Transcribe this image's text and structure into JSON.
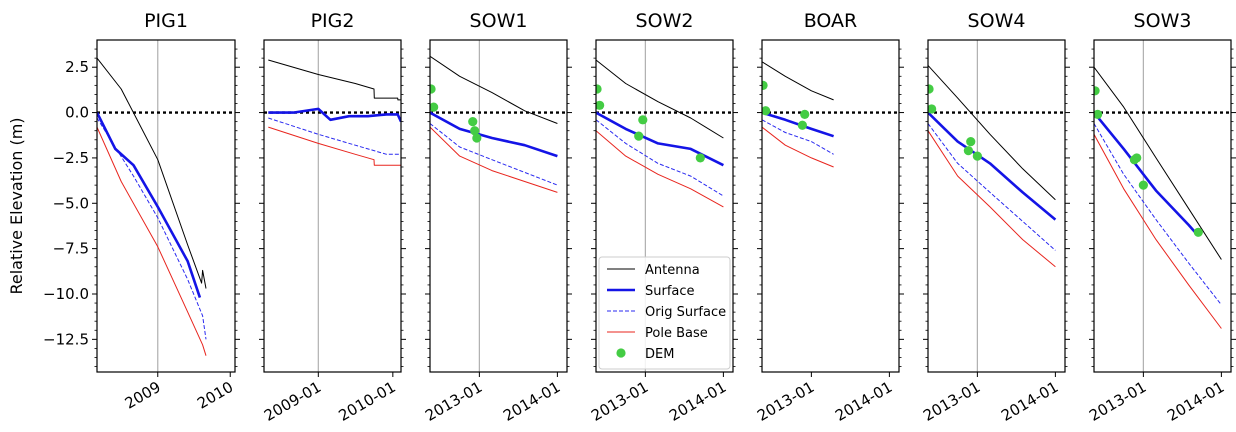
{
  "figure": {
    "ylabel": "Relative Elevation (m)",
    "ylim": [
      -14.3,
      4.0
    ],
    "yticks": [
      2.5,
      0.0,
      -2.5,
      -5.0,
      -7.5,
      -10.0,
      -12.5
    ],
    "ytick_labels": [
      "2.5",
      "0.0",
      "−2.5",
      "−5.0",
      "−7.5",
      "−10.0",
      "−12.5"
    ],
    "colors": {
      "antenna": "#000000",
      "surface": "#1414e6",
      "orig_surface": "#2a2af0",
      "pole_base": "#e8251e",
      "dem": "#44cc44",
      "zero_line": "#000000"
    },
    "legend": {
      "panel": "SOW2",
      "placement": "lower-center",
      "entries": [
        {
          "key": "antenna",
          "label": "Antenna"
        },
        {
          "key": "surface",
          "label": "Surface"
        },
        {
          "key": "orig_surface",
          "label": "Orig Surface"
        },
        {
          "key": "pole_base",
          "label": "Pole Base"
        },
        {
          "key": "dem",
          "label": "DEM"
        }
      ]
    }
  },
  "chart_data": [
    {
      "type": "line",
      "title": "PIG1",
      "xlim": [
        "2008-03-01",
        "2010-01-25"
      ],
      "xticks": [
        {
          "x": "2009-01-01",
          "label": "2009"
        },
        {
          "x": "2010-01-01",
          "label": "2010"
        }
      ],
      "vline": "2009-01-01",
      "series": {
        "antenna": {
          "x": [
            "2008-03-01",
            "2008-07-01",
            "2009-01-01",
            "2009-06-01",
            "2009-08-10",
            "2009-08-15",
            "2009-09-01"
          ],
          "y": [
            3.0,
            1.3,
            -2.6,
            -7.3,
            -9.4,
            -8.7,
            -9.7
          ]
        },
        "surface": {
          "x": [
            "2008-03-01",
            "2008-06-01",
            "2008-09-01",
            "2009-01-01",
            "2009-06-01",
            "2009-08-01"
          ],
          "y": [
            0.0,
            -2.0,
            -2.9,
            -5.2,
            -8.2,
            -10.2
          ]
        },
        "orig_surface": {
          "x": [
            "2008-03-01",
            "2008-09-01",
            "2009-01-01",
            "2009-06-01",
            "2009-08-15",
            "2009-09-01"
          ],
          "y": [
            -0.3,
            -3.5,
            -5.8,
            -9.2,
            -11.2,
            -12.5
          ]
        },
        "pole_base": {
          "x": [
            "2008-03-01",
            "2008-07-01",
            "2009-01-01",
            "2009-06-01",
            "2009-08-15",
            "2009-09-01"
          ],
          "y": [
            -0.8,
            -3.8,
            -7.4,
            -11.0,
            -12.8,
            -13.4
          ]
        }
      },
      "dem": {
        "x": [],
        "y": []
      }
    },
    {
      "type": "line",
      "title": "PIG2",
      "xlim": [
        "2008-04-10",
        "2010-02-10"
      ],
      "xticks": [
        {
          "x": "2009-01-01",
          "label": "2009-01"
        },
        {
          "x": "2010-01-01",
          "label": "2010-01"
        }
      ],
      "vline": "2009-01-01",
      "series": {
        "antenna": {
          "x": [
            "2008-05-01",
            "2009-01-01",
            "2009-07-01",
            "2009-10-01",
            "2009-10-02",
            "2010-01-25",
            "2010-01-26",
            "2010-02-10"
          ],
          "y": [
            2.9,
            2.1,
            1.6,
            1.3,
            0.8,
            0.8,
            0.7,
            0.7
          ]
        },
        "surface": {
          "x": [
            "2008-05-01",
            "2008-09-01",
            "2009-01-01",
            "2009-03-01",
            "2009-06-01",
            "2009-09-01",
            "2009-12-01",
            "2010-01-25",
            "2010-02-10"
          ],
          "y": [
            0.0,
            0.0,
            0.2,
            -0.4,
            -0.2,
            -0.2,
            -0.1,
            -0.1,
            -0.5
          ]
        },
        "orig_surface": {
          "x": [
            "2008-05-01",
            "2009-01-01",
            "2009-07-01",
            "2009-12-01",
            "2010-02-10"
          ],
          "y": [
            -0.3,
            -1.2,
            -1.8,
            -2.3,
            -2.3
          ]
        },
        "pole_base": {
          "x": [
            "2008-05-01",
            "2009-01-01",
            "2009-07-01",
            "2009-10-01",
            "2009-10-02",
            "2010-02-10"
          ],
          "y": [
            -0.8,
            -1.7,
            -2.3,
            -2.6,
            -2.9,
            -2.9
          ]
        }
      },
      "dem": {
        "x": [],
        "y": []
      }
    },
    {
      "type": "line",
      "title": "SOW1",
      "xlim": [
        "2012-05-15",
        "2014-02-15"
      ],
      "xticks": [
        {
          "x": "2013-01-01",
          "label": "2013-01"
        },
        {
          "x": "2014-01-01",
          "label": "2014-01"
        }
      ],
      "vline": "2013-01-01",
      "series": {
        "antenna": {
          "x": [
            "2012-05-15",
            "2012-10-01",
            "2013-03-01",
            "2013-08-01",
            "2014-01-01"
          ],
          "y": [
            3.1,
            2.0,
            1.1,
            0.1,
            -0.6
          ]
        },
        "surface": {
          "x": [
            "2012-05-15",
            "2012-10-01",
            "2013-03-01",
            "2013-08-01",
            "2014-01-01"
          ],
          "y": [
            0.0,
            -0.9,
            -1.4,
            -1.8,
            -2.4
          ]
        },
        "orig_surface": {
          "x": [
            "2012-05-15",
            "2012-10-01",
            "2013-03-01",
            "2013-08-01",
            "2014-01-01"
          ],
          "y": [
            -0.6,
            -1.9,
            -2.6,
            -3.3,
            -4.0
          ]
        },
        "pole_base": {
          "x": [
            "2012-05-15",
            "2012-10-01",
            "2013-03-01",
            "2013-08-01",
            "2014-01-01"
          ],
          "y": [
            -0.8,
            -2.4,
            -3.2,
            -3.8,
            -4.4
          ]
        }
      },
      "dem": {
        "x": [
          "2012-05-20",
          "2012-06-01",
          "2012-12-01",
          "2012-12-10",
          "2012-12-20"
        ],
        "y": [
          1.3,
          0.3,
          -0.5,
          -1.0,
          -1.4
        ]
      }
    },
    {
      "type": "line",
      "title": "SOW2",
      "xlim": [
        "2012-05-15",
        "2014-02-15"
      ],
      "xticks": [
        {
          "x": "2013-01-01",
          "label": "2013-01"
        },
        {
          "x": "2014-01-01",
          "label": "2014-01"
        }
      ],
      "vline": "2013-01-01",
      "series": {
        "antenna": {
          "x": [
            "2012-05-15",
            "2012-10-01",
            "2013-03-01",
            "2013-08-01",
            "2014-01-01"
          ],
          "y": [
            2.9,
            1.6,
            0.6,
            -0.3,
            -1.4
          ]
        },
        "surface": {
          "x": [
            "2012-05-15",
            "2012-10-01",
            "2013-03-01",
            "2013-08-01",
            "2014-01-01"
          ],
          "y": [
            0.0,
            -0.9,
            -1.7,
            -2.0,
            -2.9
          ]
        },
        "orig_surface": {
          "x": [
            "2012-05-15",
            "2012-10-01",
            "2013-03-01",
            "2013-08-01",
            "2014-01-01"
          ],
          "y": [
            -0.4,
            -1.7,
            -2.8,
            -3.5,
            -4.6
          ]
        },
        "pole_base": {
          "x": [
            "2012-05-15",
            "2012-10-01",
            "2013-03-01",
            "2013-08-01",
            "2014-01-01"
          ],
          "y": [
            -1.0,
            -2.4,
            -3.4,
            -4.2,
            -5.2
          ]
        }
      },
      "dem": {
        "x": [
          "2012-05-20",
          "2012-06-01",
          "2012-12-01",
          "2012-12-20",
          "2013-09-15"
        ],
        "y": [
          1.3,
          0.4,
          -1.3,
          -0.4,
          -2.5
        ]
      }
    },
    {
      "type": "line",
      "title": "BOAR",
      "xlim": [
        "2012-05-15",
        "2014-02-15"
      ],
      "xticks": [
        {
          "x": "2013-01-01",
          "label": "2013-01"
        },
        {
          "x": "2014-01-01",
          "label": "2014-01"
        }
      ],
      "vline": "",
      "series": {
        "antenna": {
          "x": [
            "2012-05-15",
            "2012-09-01",
            "2013-01-01",
            "2013-04-15"
          ],
          "y": [
            2.8,
            2.0,
            1.2,
            0.7
          ]
        },
        "surface": {
          "x": [
            "2012-05-15",
            "2012-09-01",
            "2013-01-01",
            "2013-04-15"
          ],
          "y": [
            0.0,
            -0.4,
            -0.9,
            -1.3
          ]
        },
        "orig_surface": {
          "x": [
            "2012-05-15",
            "2012-09-01",
            "2013-01-01",
            "2013-04-15"
          ],
          "y": [
            -0.4,
            -1.1,
            -1.6,
            -2.3
          ]
        },
        "pole_base": {
          "x": [
            "2012-05-15",
            "2012-09-01",
            "2013-01-01",
            "2013-04-15"
          ],
          "y": [
            -0.8,
            -1.8,
            -2.5,
            -3.0
          ]
        }
      },
      "dem": {
        "x": [
          "2012-05-20",
          "2012-06-01",
          "2012-11-20",
          "2012-12-01"
        ],
        "y": [
          1.5,
          0.1,
          -0.7,
          -0.1
        ]
      }
    },
    {
      "type": "line",
      "title": "SOW4",
      "xlim": [
        "2012-05-15",
        "2014-02-15"
      ],
      "xticks": [
        {
          "x": "2013-01-01",
          "label": "2013-01"
        },
        {
          "x": "2014-01-01",
          "label": "2014-01"
        }
      ],
      "vline": "2013-01-01",
      "series": {
        "antenna": {
          "x": [
            "2012-05-15",
            "2012-10-01",
            "2013-03-01",
            "2013-08-01",
            "2014-01-01"
          ],
          "y": [
            2.6,
            0.8,
            -1.2,
            -3.1,
            -4.8
          ]
        },
        "surface": {
          "x": [
            "2012-05-15",
            "2012-10-01",
            "2013-03-01",
            "2013-08-01",
            "2014-01-01"
          ],
          "y": [
            0.0,
            -1.6,
            -2.8,
            -4.4,
            -5.9
          ]
        },
        "orig_surface": {
          "x": [
            "2012-05-15",
            "2012-10-01",
            "2013-03-01",
            "2013-08-01",
            "2014-01-01"
          ],
          "y": [
            -0.6,
            -2.8,
            -4.4,
            -6.0,
            -7.6
          ]
        },
        "pole_base": {
          "x": [
            "2012-05-15",
            "2012-10-01",
            "2013-03-01",
            "2013-08-01",
            "2014-01-01"
          ],
          "y": [
            -1.0,
            -3.5,
            -5.2,
            -7.0,
            -8.5
          ]
        }
      },
      "dem": {
        "x": [
          "2012-05-20",
          "2012-06-01",
          "2012-11-20",
          "2012-12-01",
          "2013-01-01"
        ],
        "y": [
          1.3,
          0.2,
          -2.1,
          -1.6,
          -2.4
        ]
      }
    },
    {
      "type": "line",
      "title": "SOW3",
      "xlim": [
        "2012-05-15",
        "2014-02-15"
      ],
      "xticks": [
        {
          "x": "2013-01-01",
          "label": "2013-01"
        },
        {
          "x": "2014-01-01",
          "label": "2014-01"
        }
      ],
      "vline": "2013-01-01",
      "series": {
        "antenna": {
          "x": [
            "2012-05-15",
            "2012-10-01",
            "2013-03-01",
            "2013-08-01",
            "2014-01-01"
          ],
          "y": [
            2.5,
            0.3,
            -2.5,
            -5.3,
            -8.1
          ]
        },
        "surface": {
          "x": [
            "2012-05-15",
            "2012-10-01",
            "2013-03-01",
            "2013-08-01",
            "2013-09-15"
          ],
          "y": [
            0.0,
            -2.0,
            -4.3,
            -6.2,
            -6.8
          ]
        },
        "orig_surface": {
          "x": [
            "2012-05-15",
            "2012-10-01",
            "2013-03-01",
            "2013-08-01",
            "2014-01-01"
          ],
          "y": [
            -0.6,
            -3.4,
            -5.9,
            -8.3,
            -10.6
          ]
        },
        "pole_base": {
          "x": [
            "2012-05-15",
            "2012-10-01",
            "2013-03-01",
            "2013-08-01",
            "2014-01-01"
          ],
          "y": [
            -1.2,
            -4.2,
            -7.0,
            -9.5,
            -11.9
          ]
        }
      },
      "dem": {
        "x": [
          "2012-05-20",
          "2012-06-01",
          "2012-11-20",
          "2012-12-01",
          "2013-01-01",
          "2013-09-15"
        ],
        "y": [
          1.2,
          -0.1,
          -2.6,
          -2.5,
          -4.0,
          -6.6
        ]
      }
    }
  ]
}
